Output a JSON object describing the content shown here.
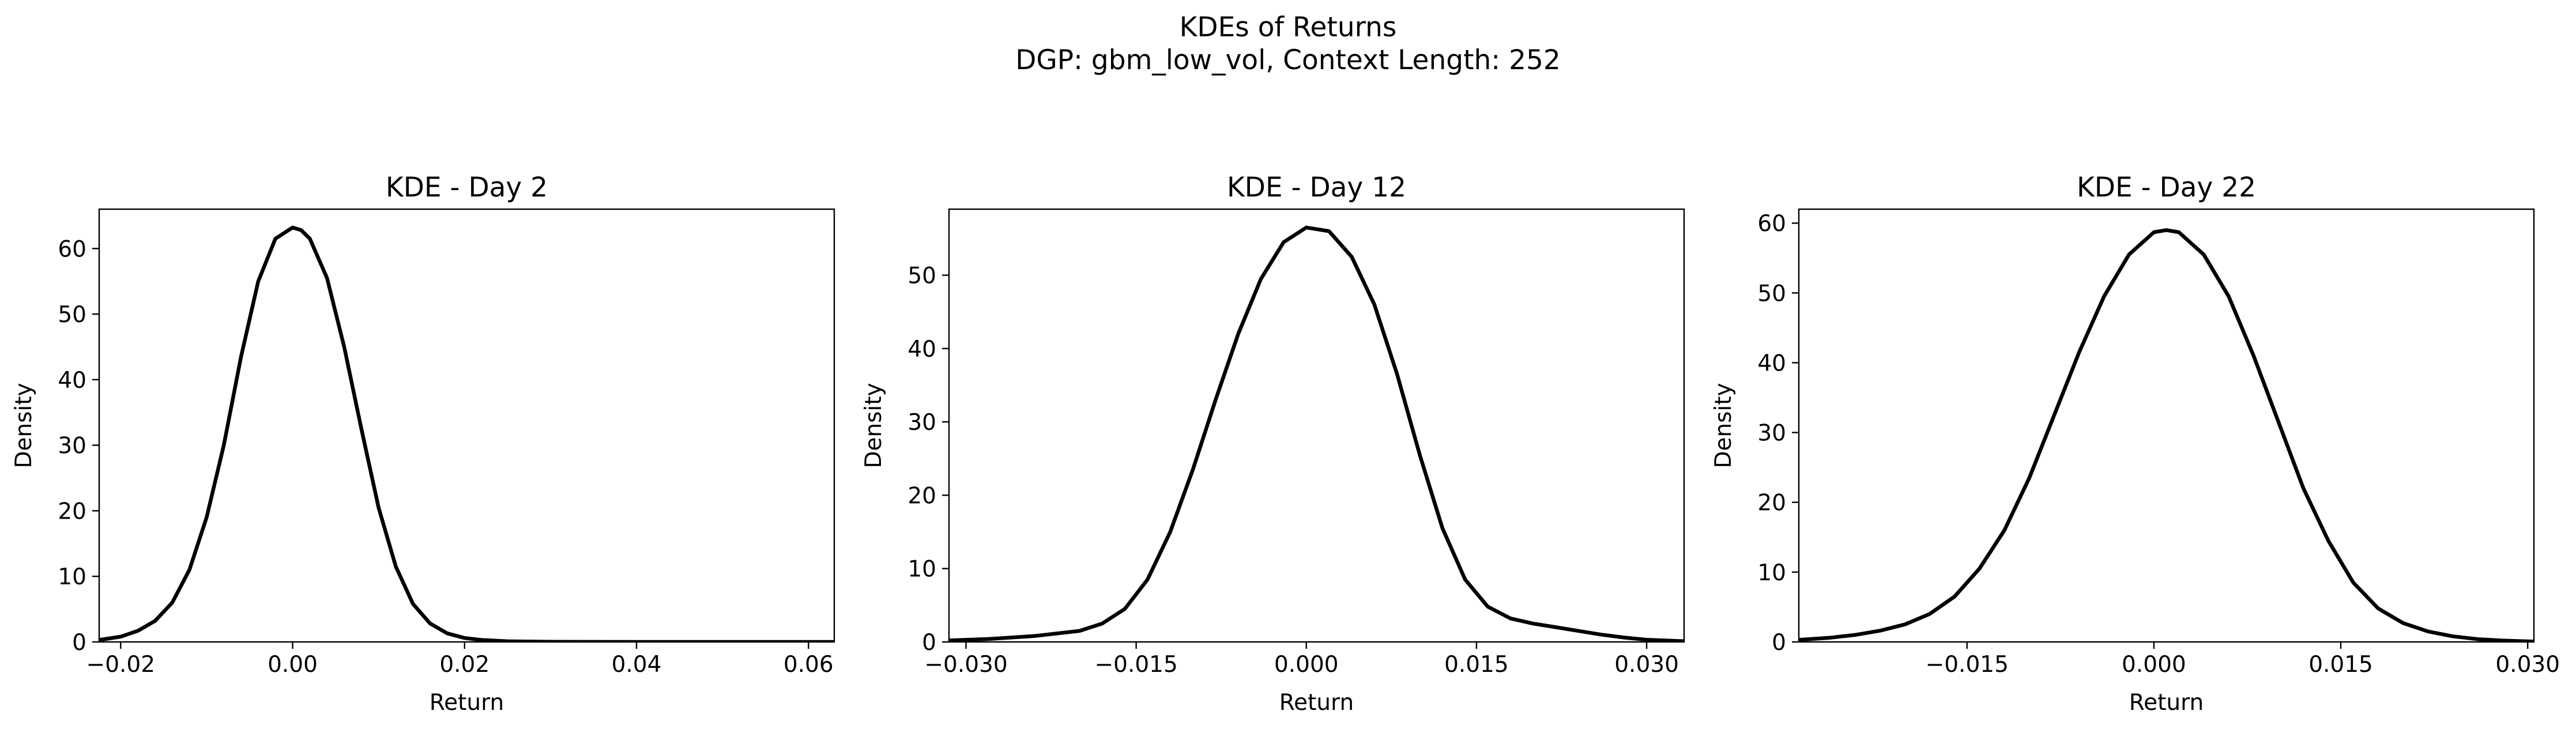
{
  "figure": {
    "title_line1": "KDEs of Returns",
    "title_line2": "DGP: gbm_low_vol, Context Length: 252"
  },
  "chart_data": [
    {
      "type": "line",
      "title": "KDE - Day 2",
      "xlabel": "Return",
      "ylabel": "Density",
      "xlim": [
        -0.0225,
        0.063
      ],
      "ylim": [
        0,
        66
      ],
      "xticks": [
        -0.02,
        0.0,
        0.02,
        0.04,
        0.06
      ],
      "xtick_labels": [
        "−0.02",
        "0.00",
        "0.02",
        "0.04",
        "0.06"
      ],
      "yticks": [
        0,
        10,
        20,
        30,
        40,
        50,
        60
      ],
      "ytick_labels": [
        "0",
        "10",
        "20",
        "30",
        "40",
        "50",
        "60"
      ],
      "color": "#000000",
      "grid": false,
      "x": [
        -0.0225,
        -0.02,
        -0.018,
        -0.016,
        -0.014,
        -0.012,
        -0.01,
        -0.008,
        -0.006,
        -0.004,
        -0.002,
        0.0,
        0.001,
        0.002,
        0.004,
        0.006,
        0.008,
        0.01,
        0.012,
        0.014,
        0.016,
        0.018,
        0.02,
        0.022,
        0.025,
        0.03,
        0.035,
        0.04,
        0.05,
        0.06,
        0.063
      ],
      "y": [
        0.3,
        0.8,
        1.7,
        3.2,
        6.0,
        11.0,
        19.0,
        30.0,
        43.5,
        55.0,
        61.5,
        63.2,
        62.8,
        61.5,
        55.5,
        45.0,
        32.5,
        20.5,
        11.5,
        5.8,
        2.8,
        1.3,
        0.6,
        0.3,
        0.1,
        0.03,
        0.01,
        0.0,
        0.0,
        0.0,
        0.0
      ]
    },
    {
      "type": "line",
      "title": "KDE - Day 12",
      "xlabel": "Return",
      "ylabel": "Density",
      "xlim": [
        -0.0315,
        0.0333
      ],
      "ylim": [
        0,
        59
      ],
      "xticks": [
        -0.03,
        -0.015,
        0.0,
        0.015,
        0.03
      ],
      "xtick_labels": [
        "−0.030",
        "−0.015",
        "0.000",
        "0.015",
        "0.030"
      ],
      "yticks": [
        0,
        10,
        20,
        30,
        40,
        50
      ],
      "ytick_labels": [
        "0",
        "10",
        "20",
        "30",
        "40",
        "50"
      ],
      "color": "#000000",
      "grid": false,
      "x": [
        -0.0315,
        -0.028,
        -0.024,
        -0.02,
        -0.018,
        -0.016,
        -0.014,
        -0.012,
        -0.01,
        -0.008,
        -0.006,
        -0.004,
        -0.002,
        0.0,
        0.002,
        0.004,
        0.006,
        0.008,
        0.01,
        0.012,
        0.014,
        0.016,
        0.018,
        0.02,
        0.022,
        0.024,
        0.026,
        0.028,
        0.03,
        0.0333
      ],
      "y": [
        0.2,
        0.4,
        0.8,
        1.5,
        2.5,
        4.5,
        8.5,
        15.0,
        23.5,
        33.0,
        42.0,
        49.5,
        54.5,
        56.5,
        56.0,
        52.5,
        46.0,
        36.5,
        25.5,
        15.5,
        8.5,
        4.8,
        3.2,
        2.5,
        2.0,
        1.5,
        1.0,
        0.6,
        0.3,
        0.1
      ]
    },
    {
      "type": "line",
      "title": "KDE - Day 22",
      "xlabel": "Return",
      "ylabel": "Density",
      "xlim": [
        -0.0285,
        0.0305
      ],
      "ylim": [
        0,
        62
      ],
      "xticks": [
        -0.015,
        0.0,
        0.015,
        0.03
      ],
      "xtick_labels": [
        "−0.015",
        "0.000",
        "0.015",
        "0.030"
      ],
      "yticks": [
        0,
        10,
        20,
        30,
        40,
        50,
        60
      ],
      "ytick_labels": [
        "0",
        "10",
        "20",
        "30",
        "40",
        "50",
        "60"
      ],
      "color": "#000000",
      "grid": false,
      "x": [
        -0.0285,
        -0.026,
        -0.024,
        -0.022,
        -0.02,
        -0.018,
        -0.016,
        -0.014,
        -0.012,
        -0.01,
        -0.008,
        -0.006,
        -0.004,
        -0.002,
        0.0,
        0.001,
        0.002,
        0.004,
        0.006,
        0.008,
        0.01,
        0.012,
        0.014,
        0.016,
        0.018,
        0.02,
        0.022,
        0.024,
        0.026,
        0.028,
        0.0305
      ],
      "y": [
        0.3,
        0.6,
        1.0,
        1.6,
        2.5,
        4.0,
        6.5,
        10.5,
        16.0,
        23.5,
        32.5,
        41.5,
        49.5,
        55.5,
        58.7,
        59.0,
        58.7,
        55.5,
        49.5,
        41.0,
        31.5,
        22.0,
        14.5,
        8.5,
        4.8,
        2.7,
        1.5,
        0.8,
        0.4,
        0.2,
        0.05
      ]
    }
  ]
}
